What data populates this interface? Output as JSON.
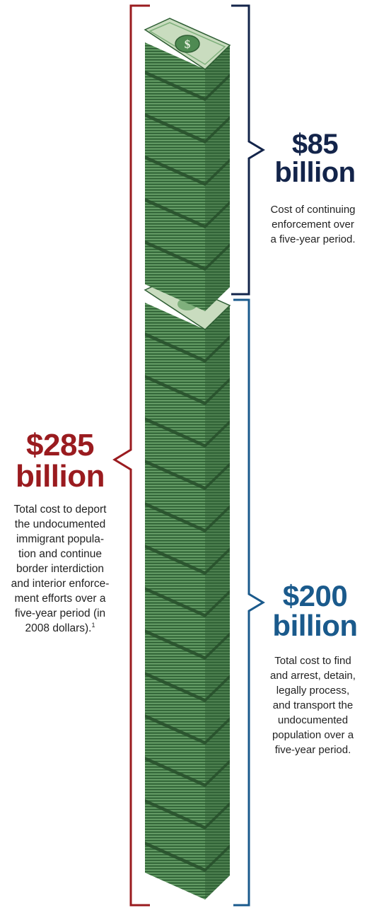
{
  "colors": {
    "red": "#9a1b1f",
    "navy": "#13244a",
    "blue": "#1a5a8c",
    "money_dark": "#2e5e34",
    "money_mid": "#4e8a52",
    "money_light": "#7fb07c",
    "bill_face": "#c9dcbf"
  },
  "total": {
    "amount": "$285",
    "unit": "billion",
    "lines": [
      "Total cost to deport",
      "the undocumented",
      "immigrant popula-",
      "tion and continue",
      "border interdiction",
      "and interior enforce-",
      "ment efforts over a",
      "five-year period (in",
      "2008 dollars)."
    ],
    "footnote": "1"
  },
  "enforcement": {
    "amount": "$85",
    "unit": "billion",
    "lines": [
      "Cost of continuing",
      "enforcement over",
      "a five-year period."
    ]
  },
  "deportation": {
    "amount": "$200",
    "unit": "billion",
    "lines": [
      "Total cost to find",
      "and arrest, detain,",
      "legally process,",
      "and transport the",
      "undocumented",
      "population over a",
      "five-year period."
    ]
  },
  "icons": {
    "bill": "dollar-bill-icon",
    "stack": "money-stack-icon"
  }
}
